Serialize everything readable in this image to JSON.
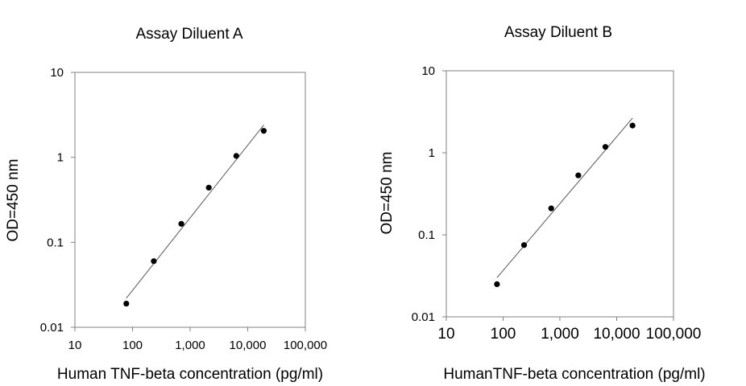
{
  "chart_data": [
    {
      "type": "scatter",
      "title": "Assay Diluent A",
      "xlabel": "Human TNF-beta concentration (pg/ml)",
      "ylabel": "OD=450 nm",
      "x_scale": "log",
      "y_scale": "log",
      "xlim": [
        10,
        100000
      ],
      "ylim": [
        0.01,
        10
      ],
      "x_ticks": [
        10,
        100,
        1000,
        10000,
        100000
      ],
      "x_tick_labels": [
        "10",
        "100",
        "1,000",
        "10,000",
        "100,000"
      ],
      "y_ticks": [
        0.01,
        0.1,
        1,
        10
      ],
      "y_tick_labels": [
        "0.01",
        "0.1",
        "1",
        "10"
      ],
      "grid": false,
      "series": [
        {
          "x": [
            78,
            234,
            703,
            2109,
            6328,
            18984
          ],
          "y": [
            0.019,
            0.06,
            0.165,
            0.44,
            1.04,
            2.05
          ]
        }
      ],
      "fit_line": {
        "x": [
          78,
          18984
        ],
        "y": [
          0.022,
          2.4
        ]
      }
    },
    {
      "type": "scatter",
      "title": "Assay Diluent B",
      "xlabel": "HumanTNF-beta concentration (pg/ml)",
      "ylabel": "OD=450 nm",
      "x_scale": "log",
      "y_scale": "log",
      "xlim": [
        10,
        100000
      ],
      "ylim": [
        0.01,
        10
      ],
      "x_ticks": [
        10,
        100,
        1000,
        10000,
        100000
      ],
      "x_tick_labels": [
        "10",
        "100",
        "1,000",
        "10,000",
        "100,000"
      ],
      "y_ticks": [
        0.01,
        0.1,
        1,
        10
      ],
      "y_tick_labels": [
        "0.01",
        "0.1",
        "1",
        "10"
      ],
      "grid": false,
      "series": [
        {
          "x": [
            78,
            234,
            703,
            2109,
            6328,
            18984
          ],
          "y": [
            0.025,
            0.075,
            0.21,
            0.53,
            1.18,
            2.15
          ]
        }
      ],
      "fit_line": {
        "x": [
          78,
          18984
        ],
        "y": [
          0.03,
          2.65
        ]
      }
    }
  ]
}
